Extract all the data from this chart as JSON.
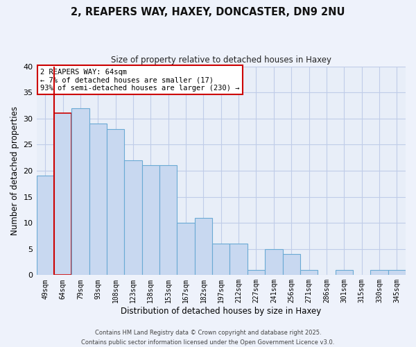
{
  "title": "2, REAPERS WAY, HAXEY, DONCASTER, DN9 2NU",
  "subtitle": "Size of property relative to detached houses in Haxey",
  "xlabel": "Distribution of detached houses by size in Haxey",
  "ylabel": "Number of detached properties",
  "bar_color": "#c8d8f0",
  "bar_edge_color": "#6aaad4",
  "highlight_bar_index": 1,
  "highlight_edge_color": "#cc0000",
  "categories": [
    "49sqm",
    "64sqm",
    "79sqm",
    "93sqm",
    "108sqm",
    "123sqm",
    "138sqm",
    "153sqm",
    "167sqm",
    "182sqm",
    "197sqm",
    "212sqm",
    "227sqm",
    "241sqm",
    "256sqm",
    "271sqm",
    "286sqm",
    "301sqm",
    "315sqm",
    "330sqm",
    "345sqm"
  ],
  "values": [
    19,
    31,
    32,
    29,
    28,
    22,
    21,
    21,
    10,
    11,
    6,
    6,
    1,
    5,
    4,
    1,
    0,
    1,
    0,
    1,
    1
  ],
  "ylim": [
    0,
    40
  ],
  "yticks": [
    0,
    5,
    10,
    15,
    20,
    25,
    30,
    35,
    40
  ],
  "annotation_title": "2 REAPERS WAY: 64sqm",
  "annotation_line1": "← 7% of detached houses are smaller (17)",
  "annotation_line2": "93% of semi-detached houses are larger (230) →",
  "footnote1": "Contains HM Land Registry data © Crown copyright and database right 2025.",
  "footnote2": "Contains public sector information licensed under the Open Government Licence v3.0.",
  "bg_color": "#eef2fb",
  "plot_bg_color": "#e8eef8",
  "grid_color": "#c0cce8"
}
